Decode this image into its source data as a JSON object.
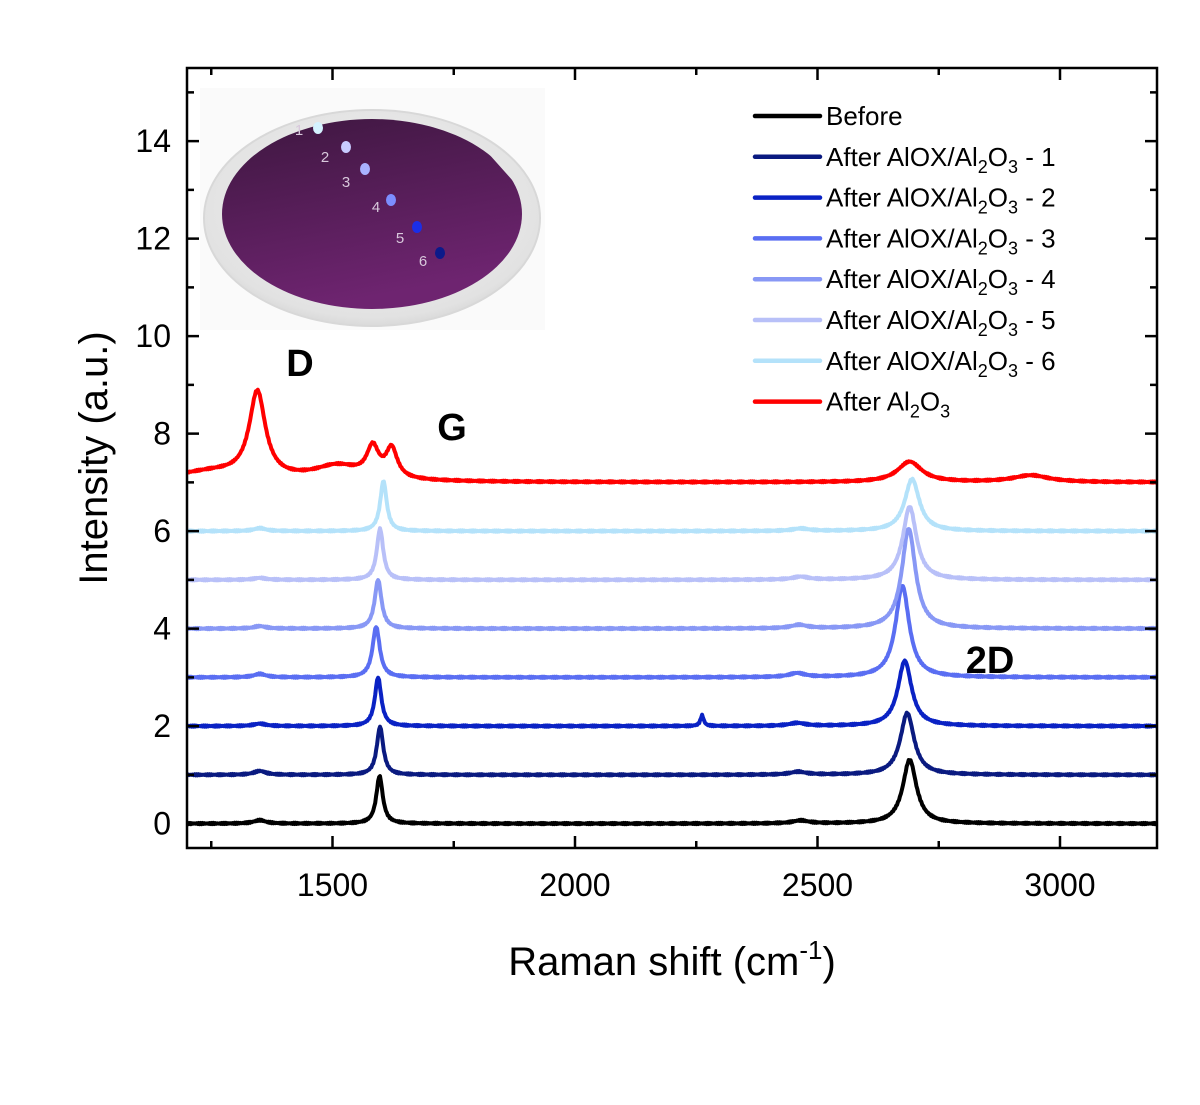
{
  "chart_data": {
    "type": "line",
    "xlabel": "Raman shift (cm⁻¹)",
    "ylabel": "Intensity (a.u.)",
    "xlim": [
      1200,
      3200
    ],
    "ylim": [
      -0.5,
      15.5
    ],
    "xticks": [
      1500,
      2000,
      2500,
      3000
    ],
    "yticks": [
      0,
      2,
      4,
      6,
      8,
      10,
      12,
      14
    ],
    "grid": false,
    "legend_position": "top-right",
    "annotations": [
      {
        "text": "D",
        "x": 1345,
        "y": 9.4
      },
      {
        "text": "G",
        "x": 1720,
        "y": 8.1
      },
      {
        "text": "2D",
        "x": 2840,
        "y": 3.4
      }
    ],
    "series": [
      {
        "name": "Before",
        "color": "#000000",
        "baseline": 0,
        "peaks": [
          {
            "position": 1350,
            "intensity": 0.07,
            "fwhm": 30
          },
          {
            "position": 1597,
            "intensity": 0.98,
            "fwhm": 16
          },
          {
            "position": 2465,
            "intensity": 0.06,
            "fwhm": 40
          },
          {
            "position": 2690,
            "intensity": 1.31,
            "fwhm": 34
          }
        ]
      },
      {
        "name": "After AlOX/Al2O3 - 1",
        "color": "#0a1a80",
        "baseline": 1,
        "peaks": [
          {
            "position": 1350,
            "intensity": 0.08,
            "fwhm": 30
          },
          {
            "position": 1598,
            "intensity": 0.99,
            "fwhm": 16
          },
          {
            "position": 2460,
            "intensity": 0.06,
            "fwhm": 40
          },
          {
            "position": 2685,
            "intensity": 1.27,
            "fwhm": 34
          }
        ]
      },
      {
        "name": "After AlOX/Al2O3 - 2",
        "color": "#0a22c4",
        "baseline": 2,
        "peaks": [
          {
            "position": 1350,
            "intensity": 0.05,
            "fwhm": 30
          },
          {
            "position": 1594,
            "intensity": 1.0,
            "fwhm": 16
          },
          {
            "position": 2262,
            "intensity": 0.22,
            "fwhm": 8
          },
          {
            "position": 2458,
            "intensity": 0.06,
            "fwhm": 40
          },
          {
            "position": 2680,
            "intensity": 1.34,
            "fwhm": 34
          }
        ]
      },
      {
        "name": "After AlOX/Al2O3 - 3",
        "color": "#5a6ef2",
        "baseline": 3,
        "peaks": [
          {
            "position": 1350,
            "intensity": 0.07,
            "fwhm": 30
          },
          {
            "position": 1590,
            "intensity": 1.04,
            "fwhm": 18
          },
          {
            "position": 2458,
            "intensity": 0.08,
            "fwhm": 40
          },
          {
            "position": 2675,
            "intensity": 1.88,
            "fwhm": 34
          }
        ]
      },
      {
        "name": "After AlOX/Al2O3 - 4",
        "color": "#8898f5",
        "baseline": 4,
        "peaks": [
          {
            "position": 1350,
            "intensity": 0.05,
            "fwhm": 30
          },
          {
            "position": 1594,
            "intensity": 1.0,
            "fwhm": 17
          },
          {
            "position": 2462,
            "intensity": 0.07,
            "fwhm": 40
          },
          {
            "position": 2688,
            "intensity": 2.05,
            "fwhm": 34
          }
        ]
      },
      {
        "name": "After AlOX/Al2O3 - 5",
        "color": "#b8c0f8",
        "baseline": 5,
        "peaks": [
          {
            "position": 1350,
            "intensity": 0.04,
            "fwhm": 30
          },
          {
            "position": 1598,
            "intensity": 1.05,
            "fwhm": 16
          },
          {
            "position": 2465,
            "intensity": 0.06,
            "fwhm": 40
          },
          {
            "position": 2690,
            "intensity": 1.5,
            "fwhm": 34
          }
        ]
      },
      {
        "name": "After AlOX/Al2O3 - 6",
        "color": "#b4e2fa",
        "baseline": 6,
        "peaks": [
          {
            "position": 1350,
            "intensity": 0.06,
            "fwhm": 30
          },
          {
            "position": 1605,
            "intensity": 1.03,
            "fwhm": 16
          },
          {
            "position": 2465,
            "intensity": 0.05,
            "fwhm": 40
          },
          {
            "position": 2695,
            "intensity": 1.07,
            "fwhm": 36
          }
        ]
      },
      {
        "name": "After Al2O3",
        "color": "#ff0000",
        "baseline": 7.0,
        "peaks": [
          {
            "position": 1250,
            "intensity": 0.2,
            "fwhm": 200
          },
          {
            "position": 1345,
            "intensity": 1.75,
            "fwhm": 40
          },
          {
            "position": 1510,
            "intensity": 0.3,
            "fwhm": 120
          },
          {
            "position": 1583,
            "intensity": 0.6,
            "fwhm": 30
          },
          {
            "position": 1622,
            "intensity": 0.6,
            "fwhm": 28
          },
          {
            "position": 2690,
            "intensity": 0.42,
            "fwhm": 60
          },
          {
            "position": 2940,
            "intensity": 0.14,
            "fwhm": 90
          }
        ]
      }
    ]
  },
  "legend": {
    "items": [
      {
        "prefix": "Before",
        "sub1": "",
        "mid": "",
        "sub2": "",
        "suffix": "",
        "color": "#000000"
      },
      {
        "prefix": "After AlOX/Al",
        "sub1": "2",
        "mid": "O",
        "sub2": "3",
        "suffix": " - 1",
        "color": "#0a1a80"
      },
      {
        "prefix": "After AlOX/Al",
        "sub1": "2",
        "mid": "O",
        "sub2": "3",
        "suffix": " - 2",
        "color": "#0a22c4"
      },
      {
        "prefix": "After AlOX/Al",
        "sub1": "2",
        "mid": "O",
        "sub2": "3",
        "suffix": " - 3",
        "color": "#5a6ef2"
      },
      {
        "prefix": "After AlOX/Al",
        "sub1": "2",
        "mid": "O",
        "sub2": "3",
        "suffix": " - 4",
        "color": "#8898f5"
      },
      {
        "prefix": "After AlOX/Al",
        "sub1": "2",
        "mid": "O",
        "sub2": "3",
        "suffix": " - 5",
        "color": "#b8c0f8"
      },
      {
        "prefix": "After AlOX/Al",
        "sub1": "2",
        "mid": "O",
        "sub2": "3",
        "suffix": " - 6",
        "color": "#b4e2fa"
      },
      {
        "prefix": "After Al",
        "sub1": "2",
        "mid": "O",
        "sub2": "3",
        "suffix": "",
        "color": "#ff0000"
      }
    ]
  },
  "axis_text": {
    "xlabel_main": "Raman shift (cm",
    "xlabel_sup": "-1",
    "xlabel_end": ")"
  },
  "inset": {
    "spots": [
      {
        "label": "1",
        "color": "#d4f2ff"
      },
      {
        "label": "2",
        "color": "#c8ccff"
      },
      {
        "label": "3",
        "color": "#a9b2ff"
      },
      {
        "label": "4",
        "color": "#7c8eff"
      },
      {
        "label": "5",
        "color": "#1a2ee8"
      },
      {
        "label": "6",
        "color": "#0c1a8a"
      }
    ]
  }
}
